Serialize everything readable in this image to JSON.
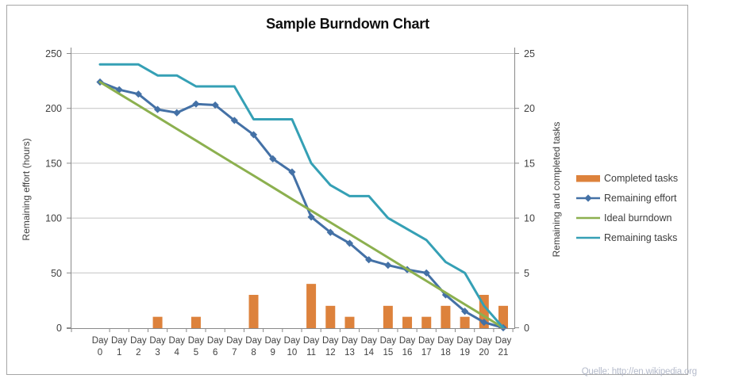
{
  "title": "Sample Burndown Chart",
  "source_note": "Quelle: http://en.wikipedia.org",
  "colors": {
    "completed_tasks": "#dd823c",
    "remaining_effort": "#4471a6",
    "ideal_burndown": "#8cb04f",
    "remaining_tasks": "#35a0b5",
    "gridline": "#c3c3c3",
    "axis_line": "#898989",
    "tick_text": "#404040",
    "title_text": "#0f0f0f",
    "figure_border": "#a6a6a6",
    "source_text": "#b5bbcb"
  },
  "legend": [
    {
      "label": "Completed tasks",
      "swatch": "bar",
      "color": "#dd823c"
    },
    {
      "label": "Remaining effort",
      "swatch": "line-diamond",
      "color": "#4471a6"
    },
    {
      "label": "Ideal burndown",
      "swatch": "line",
      "color": "#8cb04f"
    },
    {
      "label": "Remaining tasks",
      "swatch": "line",
      "color": "#35a0b5"
    }
  ],
  "chart_data": {
    "type": "combo",
    "title": "Sample Burndown Chart",
    "grid": true,
    "legend_position": "right",
    "x": [
      0,
      1,
      2,
      3,
      4,
      5,
      6,
      7,
      8,
      9,
      10,
      11,
      12,
      13,
      14,
      15,
      16,
      17,
      18,
      19,
      20,
      21
    ],
    "x_tick_labels": [
      "Day 0",
      "Day 1",
      "Day 2",
      "Day 3",
      "Day 4",
      "Day 5",
      "Day 6",
      "Day 7",
      "Day 8",
      "Day 9",
      "Day 10",
      "Day 11",
      "Day 12",
      "Day 13",
      "Day 14",
      "Day 15",
      "Day 16",
      "Day 17",
      "Day 18",
      "Day 19",
      "Day 20",
      "Day 21"
    ],
    "left_axis": {
      "label": "Remaining effort (hours)",
      "range": [
        0,
        250
      ],
      "ticks": [
        0,
        50,
        100,
        150,
        200,
        250
      ]
    },
    "right_axis": {
      "label": "Remaining and  completed tasks",
      "range": [
        0,
        25
      ],
      "ticks": [
        0,
        5,
        10,
        15,
        20,
        25
      ]
    },
    "series": [
      {
        "name": "Completed tasks",
        "type": "bar",
        "axis": "right",
        "color": "#dd823c",
        "values": [
          0,
          0,
          0,
          1,
          0,
          1,
          0,
          0,
          3,
          0,
          0,
          4,
          2,
          1,
          0,
          2,
          1,
          1,
          2,
          1,
          3,
          2
        ]
      },
      {
        "name": "Remaining effort",
        "type": "line",
        "marker": "diamond",
        "axis": "left",
        "color": "#4471a6",
        "values": [
          224,
          217,
          213,
          199,
          196,
          204,
          203,
          189,
          176,
          154,
          142,
          101,
          87,
          77,
          62,
          57,
          53,
          50,
          30,
          15,
          5,
          0
        ]
      },
      {
        "name": "Ideal burndown",
        "type": "line",
        "marker": "none",
        "axis": "left",
        "color": "#8cb04f",
        "values": [
          224,
          213.3,
          202.7,
          192,
          181.3,
          170.7,
          160,
          149.3,
          138.7,
          128,
          117.3,
          106.7,
          96,
          85.3,
          74.7,
          64,
          53.3,
          42.7,
          32,
          21.3,
          10.7,
          0
        ]
      },
      {
        "name": "Remaining tasks",
        "type": "line",
        "marker": "none",
        "axis": "right",
        "color": "#35a0b5",
        "values": [
          24,
          24,
          24,
          23,
          23,
          22,
          22,
          22,
          19,
          19,
          19,
          15,
          13,
          12,
          12,
          10,
          9,
          8,
          6,
          5,
          2,
          0
        ]
      }
    ]
  }
}
